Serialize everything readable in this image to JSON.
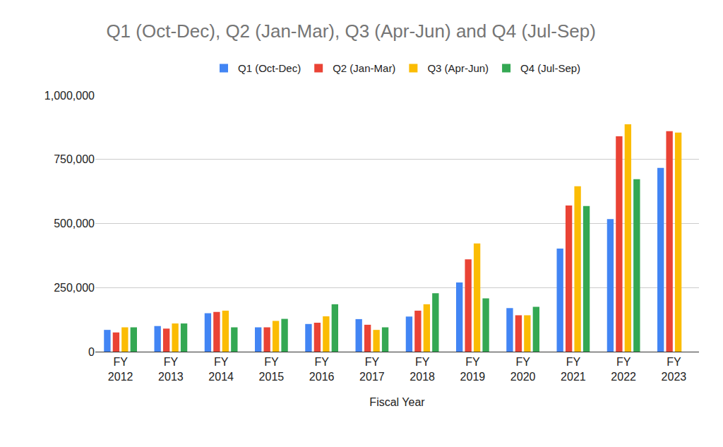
{
  "chart_data": {
    "type": "bar",
    "title": "Q1 (Oct-Dec), Q2 (Jan-Mar), Q3 (Apr-Jun) and Q4 (Jul-Sep)",
    "x_label": "Fiscal Year",
    "categories": [
      "FY 2012",
      "FY 2013",
      "FY 2014",
      "FY 2015",
      "FY 2016",
      "FY 2017",
      "FY 2018",
      "FY 2019",
      "FY 2020",
      "FY 2021",
      "FY 2022",
      "FY 2023"
    ],
    "series": [
      {
        "name": "Q1 (Oct-Dec)",
        "color": "#4285f4",
        "values": [
          85000,
          100000,
          150000,
          95000,
          108000,
          127000,
          137000,
          270000,
          170000,
          402000,
          517000,
          717000
        ]
      },
      {
        "name": "Q2 (Jan-Mar)",
        "color": "#ea4335",
        "values": [
          75000,
          90000,
          155000,
          95000,
          113000,
          105000,
          160000,
          360000,
          142000,
          570000,
          840000,
          860000
        ]
      },
      {
        "name": "Q3 (Apr-Jun)",
        "color": "#fbbc04",
        "values": [
          95000,
          110000,
          160000,
          120000,
          138000,
          85000,
          185000,
          422000,
          142000,
          645000,
          887000,
          855000
        ]
      },
      {
        "name": "Q4 (Jul-Sep)",
        "color": "#34a853",
        "values": [
          95000,
          110000,
          95000,
          128000,
          185000,
          95000,
          228000,
          208000,
          175000,
          568000,
          673000,
          null
        ]
      }
    ],
    "ylim": [
      0,
      1000000
    ],
    "yticks": [
      0,
      {
        "value": 250000,
        "label": "250,000"
      },
      {
        "value": 500000,
        "label": "500,000"
      },
      {
        "value": 750000,
        "label": "750,000"
      },
      {
        "value": 1000000,
        "label": "1,000,000"
      }
    ],
    "grid": true,
    "legend": "top"
  }
}
